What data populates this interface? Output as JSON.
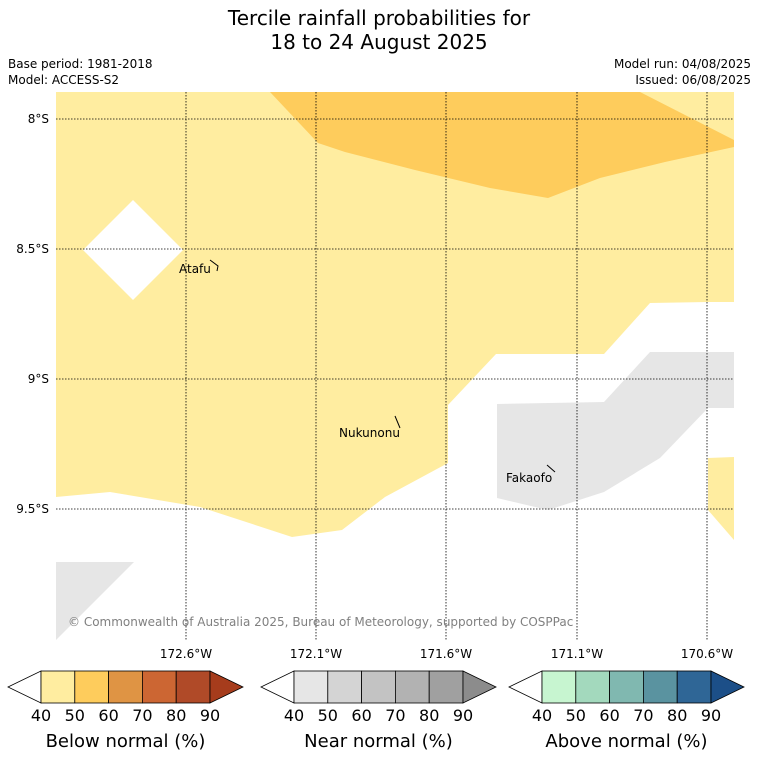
{
  "title_line1": "Tercile rainfall probabilities for",
  "title_line2": "18 to 24 August 2025",
  "base_period": "Base period: 1981-2018",
  "model": "Model: ACCESS-S2",
  "model_run": "Model run: 04/08/2025",
  "issued": "Issued: 06/08/2025",
  "map": {
    "lat_labels": [
      "8°S",
      "8.5°S",
      "9°S",
      "9.5°S"
    ],
    "lon_labels": [
      "172.6°W",
      "172.1°W",
      "171.6°W",
      "171.1°W",
      "170.6°W"
    ],
    "places": [
      "Atafu",
      "Nukunonu",
      "Fakaofo"
    ],
    "copyright": "© Commonwealth of Australia 2025, Bureau of Meteorology, supported by COSPPac"
  },
  "colorbars": [
    {
      "label": "Below normal (%)",
      "ticks": [
        "40",
        "50",
        "60",
        "70",
        "80",
        "90"
      ],
      "colors": [
        "#ffeda0",
        "#fecc5c",
        "#df9444",
        "#cc6633",
        "#b04a28",
        "#a63c1c"
      ]
    },
    {
      "label": "Near normal (%)",
      "ticks": [
        "40",
        "50",
        "60",
        "70",
        "80",
        "90"
      ],
      "colors": [
        "#e6e6e6",
        "#d4d4d4",
        "#c3c3c3",
        "#b2b2b2",
        "#a0a0a0",
        "#8c8c8c"
      ]
    },
    {
      "label": "Above normal (%)",
      "ticks": [
        "40",
        "50",
        "60",
        "70",
        "80",
        "90"
      ],
      "colors": [
        "#c7f5d0",
        "#a3d9bd",
        "#80b8b0",
        "#5a93a0",
        "#2f6696",
        "#1c4f88"
      ]
    }
  ]
}
